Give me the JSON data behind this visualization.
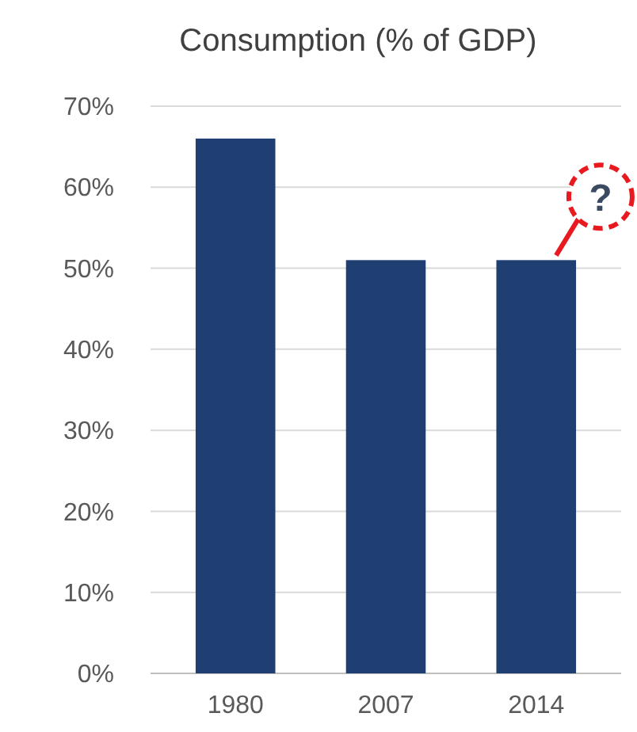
{
  "chart_data": {
    "type": "bar",
    "title": "Consumption (% of GDP)",
    "categories": [
      "1980",
      "2007",
      "2014"
    ],
    "values": [
      66,
      51,
      51
    ],
    "color": "#1f3f73",
    "ylim": [
      0,
      70
    ],
    "yticks": [
      {
        "value": 0,
        "label": "0%"
      },
      {
        "value": 10,
        "label": "10%"
      },
      {
        "value": 20,
        "label": "20%"
      },
      {
        "value": 30,
        "label": "30%"
      },
      {
        "value": 40,
        "label": "40%"
      },
      {
        "value": 50,
        "label": "50%"
      },
      {
        "value": 60,
        "label": "60%"
      },
      {
        "value": 70,
        "label": "70%"
      }
    ],
    "grid": true,
    "annotations": [
      {
        "text": "?",
        "x": "2014",
        "y": 51
      }
    ]
  }
}
